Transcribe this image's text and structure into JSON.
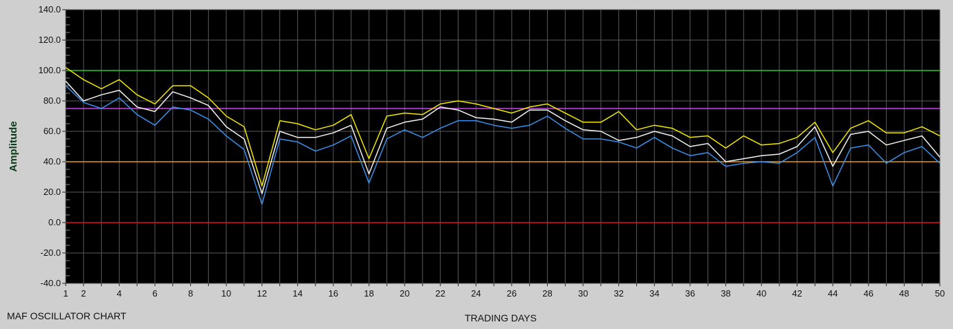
{
  "chart_data": {
    "type": "line",
    "title": "MAF OSCILLATOR CHART",
    "xlabel": "TRADING DAYS",
    "ylabel": "Amplitude",
    "xlim": [
      1,
      50
    ],
    "ylim": [
      -40,
      140
    ],
    "grid": true,
    "x_ticks": [
      1,
      2,
      4,
      6,
      8,
      10,
      12,
      14,
      16,
      18,
      20,
      22,
      24,
      26,
      28,
      30,
      32,
      34,
      36,
      38,
      40,
      42,
      44,
      46,
      48,
      50
    ],
    "y_ticks": [
      "-40.0",
      "-20.0",
      "0.0",
      "20.0",
      "40.0",
      "60.0",
      "80.0",
      "100.0",
      "120.0",
      "140.0"
    ],
    "reference_lines": [
      {
        "y": 100,
        "color": "#22cc22"
      },
      {
        "y": 75,
        "color": "#cc44ee"
      },
      {
        "y": 40,
        "color": "#e69b10"
      },
      {
        "y": 0,
        "color": "#e01010"
      }
    ],
    "x": [
      1,
      2,
      3,
      4,
      5,
      6,
      7,
      8,
      9,
      10,
      11,
      12,
      13,
      14,
      15,
      16,
      17,
      18,
      19,
      20,
      21,
      22,
      23,
      24,
      25,
      26,
      27,
      28,
      29,
      30,
      31,
      32,
      33,
      34,
      35,
      36,
      37,
      38,
      39,
      40,
      41,
      42,
      43,
      44,
      45,
      46,
      47,
      48,
      49,
      50
    ],
    "series": [
      {
        "color": "#f2e600",
        "values": [
          102,
          94,
          88,
          94,
          84,
          78,
          90,
          90,
          82,
          70,
          63,
          24,
          67,
          65,
          61,
          64,
          71,
          42,
          70,
          72,
          71,
          78,
          80,
          78,
          75,
          72,
          76,
          78,
          72,
          66,
          66,
          73,
          61,
          64,
          62,
          56,
          57,
          49,
          57,
          51,
          52,
          56,
          66,
          46,
          62,
          67,
          59,
          59,
          63,
          57
        ]
      },
      {
        "color": "#f2f2f2",
        "values": [
          93,
          80,
          84,
          87,
          76,
          73,
          86,
          82,
          77,
          63,
          55,
          19,
          60,
          56,
          56,
          59,
          64,
          32,
          62,
          66,
          68,
          76,
          74,
          69,
          68,
          66,
          74,
          74,
          67,
          61,
          60,
          54,
          56,
          60,
          57,
          50,
          52,
          40,
          42,
          44,
          45,
          50,
          63,
          37,
          58,
          60,
          51,
          54,
          57,
          43
        ]
      },
      {
        "color": "#3a8fe8",
        "values": [
          90,
          79,
          75,
          82,
          71,
          64,
          76,
          74,
          68,
          57,
          48,
          12,
          55,
          53,
          47,
          51,
          57,
          26,
          55,
          61,
          56,
          62,
          67,
          67,
          64,
          62,
          64,
          70,
          62,
          55,
          55,
          53,
          49,
          56,
          49,
          44,
          46,
          37,
          39,
          40,
          39,
          46,
          56,
          24,
          49,
          51,
          39,
          46,
          50,
          39
        ]
      }
    ]
  }
}
